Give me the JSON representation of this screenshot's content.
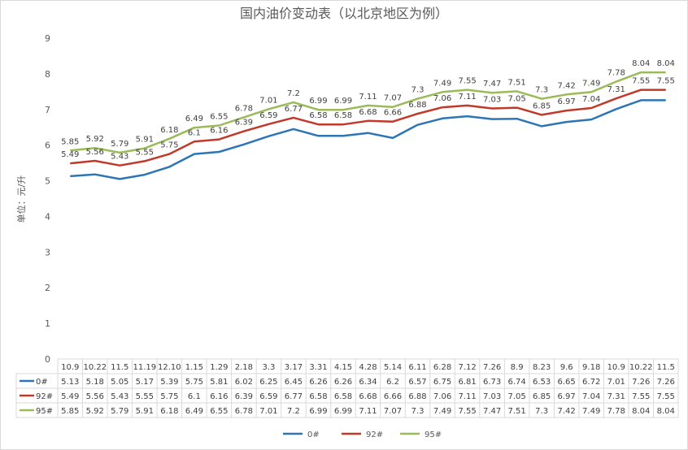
{
  "chart_data": {
    "type": "line",
    "title": "国内油价变动表（以北京地区为例）",
    "ylabel": "单位：元/升",
    "xlabel": "",
    "ylim": [
      0,
      9
    ],
    "yticks": [
      0,
      1,
      2,
      3,
      4,
      5,
      6,
      7,
      8,
      9
    ],
    "grid": false,
    "legend": "bottom",
    "categories": [
      "10.9",
      "10.22",
      "11.5",
      "11.19",
      "12.10",
      "1.15",
      "1.29",
      "2.18",
      "3.3",
      "3.17",
      "3.31",
      "4.15",
      "4.28",
      "5.14",
      "6.11",
      "6.28",
      "7.12",
      "7.26",
      "8.9",
      "8.23",
      "9.6",
      "9.18",
      "10.9",
      "10.22",
      "11.5"
    ],
    "series": [
      {
        "name": "0#",
        "color": "#2e75b6",
        "values": [
          5.13,
          5.18,
          5.05,
          5.17,
          5.39,
          5.75,
          5.81,
          6.02,
          6.25,
          6.45,
          6.26,
          6.26,
          6.34,
          6.2,
          6.57,
          6.75,
          6.81,
          6.73,
          6.74,
          6.53,
          6.65,
          6.72,
          7.01,
          7.26,
          7.26
        ]
      },
      {
        "name": "92#",
        "color": "#c0392b",
        "values": [
          5.49,
          5.56,
          5.43,
          5.55,
          5.75,
          6.1,
          6.16,
          6.39,
          6.59,
          6.77,
          6.58,
          6.58,
          6.68,
          6.66,
          6.88,
          7.06,
          7.11,
          7.03,
          7.05,
          6.85,
          6.97,
          7.04,
          7.31,
          7.55,
          7.55
        ]
      },
      {
        "name": "95#",
        "color": "#9bbb59",
        "values": [
          5.85,
          5.92,
          5.79,
          5.91,
          6.18,
          6.49,
          6.55,
          6.78,
          7.01,
          7.2,
          6.99,
          6.99,
          7.11,
          7.07,
          7.3,
          7.49,
          7.55,
          7.47,
          7.51,
          7.3,
          7.42,
          7.49,
          7.78,
          8.04,
          8.04
        ]
      }
    ]
  }
}
